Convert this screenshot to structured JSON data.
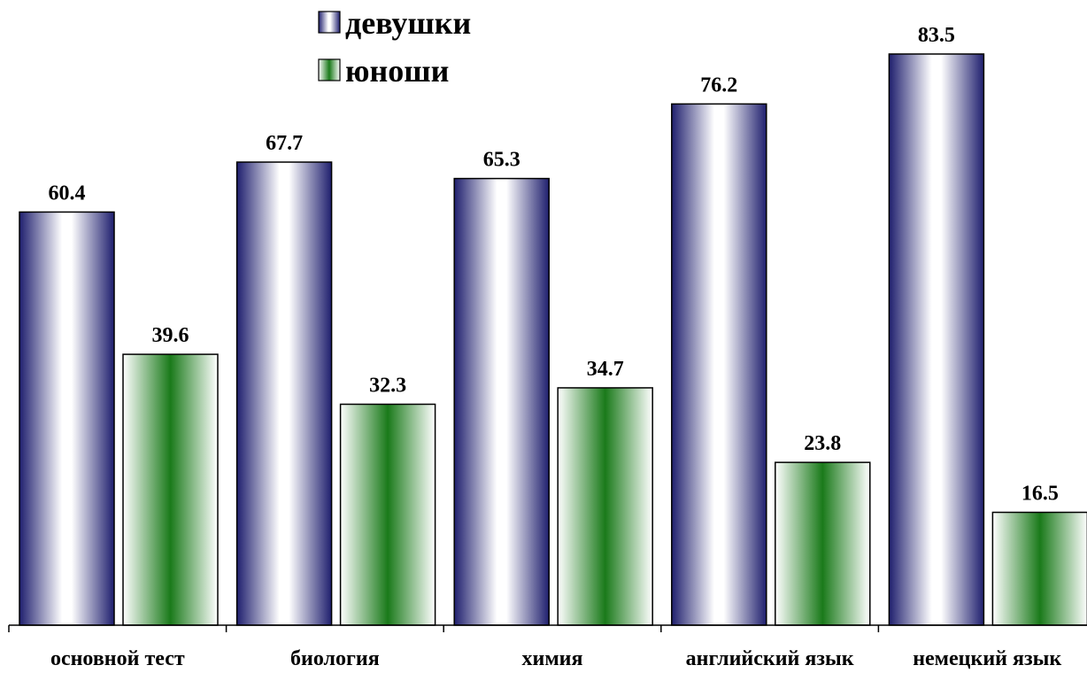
{
  "chart_data": {
    "type": "bar",
    "title": "",
    "xlabel": "",
    "ylabel": "",
    "categories": [
      "основной тест",
      "биология",
      "химия",
      "английский язык",
      "немецкий язык"
    ],
    "series": [
      {
        "name": "девушки",
        "values": [
          60.4,
          67.7,
          65.3,
          76.2,
          83.5
        ]
      },
      {
        "name": "юноши",
        "values": [
          39.6,
          32.3,
          34.7,
          23.8,
          16.5
        ]
      }
    ],
    "ylim": [
      0,
      90
    ],
    "grid": false,
    "legend_position": "top-center",
    "colors": {
      "девушки": "#1f1f6e",
      "юноши": "#1a7a1a"
    }
  }
}
